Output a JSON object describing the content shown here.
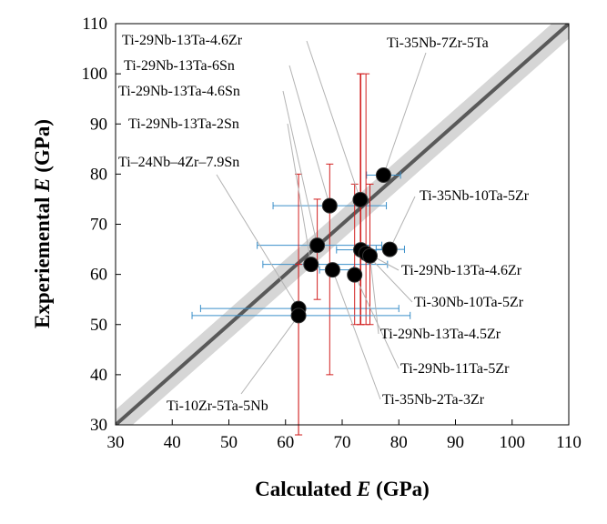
{
  "chart_data": {
    "type": "scatter",
    "title": "",
    "xlabel": "Calculated E (GPa)",
    "xlabel_parts": [
      "Calculated ",
      "E",
      " (GPa)"
    ],
    "ylabel": "Experiemental E (GPa)",
    "ylabel_parts": [
      "Experiemental ",
      "E",
      " (GPa)"
    ],
    "xlim": [
      30,
      110
    ],
    "ylim": [
      30,
      110
    ],
    "xticks": [
      "30",
      "40",
      "50",
      "60",
      "70",
      "80",
      "90",
      "100",
      "110"
    ],
    "yticks": [
      "30",
      "40",
      "50",
      "60",
      "70",
      "80",
      "90",
      "100",
      "110"
    ],
    "grid": false,
    "legend": "none",
    "reference_line": {
      "type": "y=x",
      "band_halfwidth": 3
    },
    "colors": {
      "points": "#000000",
      "reference_line": "#595959",
      "band": "#d6d6d6",
      "x_error": "#3a8fc9",
      "y_error": "#d21f1f",
      "leader": "#b3b3b3"
    },
    "points": [
      {
        "label": "Ti-35Nb-7Zr-5Ta",
        "x": 77.3,
        "y": 79.8,
        "xerr": [
          74.3,
          80.3
        ]
      },
      {
        "label": "Ti-29Nb-13Ta-4.6Zr",
        "x": 73.2,
        "y": 74.9,
        "yerr": [
          50,
          100
        ]
      },
      {
        "label": "Ti-29Nb-13Ta-6Sn",
        "x": 67.8,
        "y": 73.7,
        "xerr": [
          57.8,
          77.8
        ],
        "yerr": [
          40,
          82
        ]
      },
      {
        "label": "Ti-29Nb-13Ta-4.6Sn",
        "x": 65.6,
        "y": 65.8,
        "xerr": [
          55,
          77
        ],
        "yerr": [
          55,
          75
        ]
      },
      {
        "label": "Ti-29Nb-13Ta-2Sn",
        "x": 64.5,
        "y": 62,
        "xerr": [
          56,
          78
        ]
      },
      {
        "label": "Ti–24Nb–4Zr–7.9Sn",
        "x": 62.3,
        "y": 53.2,
        "xerr": [
          45,
          80
        ],
        "yerr": [
          28,
          80
        ]
      },
      {
        "label": "Ti-35Nb-10Ta-5Zr",
        "x": 78.4,
        "y": 65,
        "xerr": [
          76,
          81
        ]
      },
      {
        "label": "Ti-29Nb-13Ta-4.6Zr",
        "x": 73.3,
        "y": 64.9,
        "xerr": [
          69,
          79
        ],
        "yerr": [
          50,
          100
        ]
      },
      {
        "label": "Ti-30Nb-10Ta-5Zr",
        "x": 74.2,
        "y": 64.2,
        "yerr": [
          50,
          100
        ]
      },
      {
        "label": "Ti-29Nb-13Ta-4.5Zr",
        "x": 74.9,
        "y": 63.7,
        "yerr": [
          50,
          78
        ]
      },
      {
        "label": "Ti-29Nb-11Ta-5Zr",
        "x": 72.2,
        "y": 59.9,
        "yerr": [
          50,
          78
        ]
      },
      {
        "label": "Ti-35Nb-2Ta-3Zr",
        "x": 68.3,
        "y": 60.9,
        "xerr": [
          66,
          72
        ]
      },
      {
        "label": "Ti-10Zr-5Ta-5Nb",
        "x": 62.3,
        "y": 51.8,
        "xerr": [
          43.5,
          82
        ],
        "yerr": [
          28,
          62
        ]
      }
    ]
  }
}
